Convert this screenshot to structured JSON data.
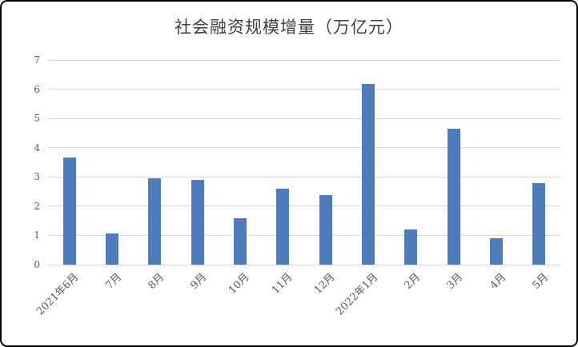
{
  "title": "社会融资规模增量（万亿元）",
  "chart_data": {
    "type": "bar",
    "title": "社会融资规模增量（万亿元）",
    "categories": [
      "2021年6月",
      "7月",
      "8月",
      "9月",
      "10月",
      "11月",
      "12月",
      "2022年1月",
      "2月",
      "3月",
      "4月",
      "5月"
    ],
    "values": [
      3.67,
      1.06,
      2.96,
      2.9,
      1.59,
      2.61,
      2.37,
      6.17,
      1.19,
      4.65,
      0.91,
      2.79
    ],
    "xlabel": "",
    "ylabel": "",
    "ylim": [
      0,
      7
    ],
    "yticks": [
      0,
      1,
      2,
      3,
      4,
      5,
      6,
      7
    ],
    "grid": "horizontal",
    "legend_position": "none",
    "colors": {
      "bar_fill": "#4c7cbc",
      "gridline": "#d9d9d9",
      "tick_label": "#595959",
      "title": "#3f3f3f",
      "frame_border": "#000000"
    }
  }
}
